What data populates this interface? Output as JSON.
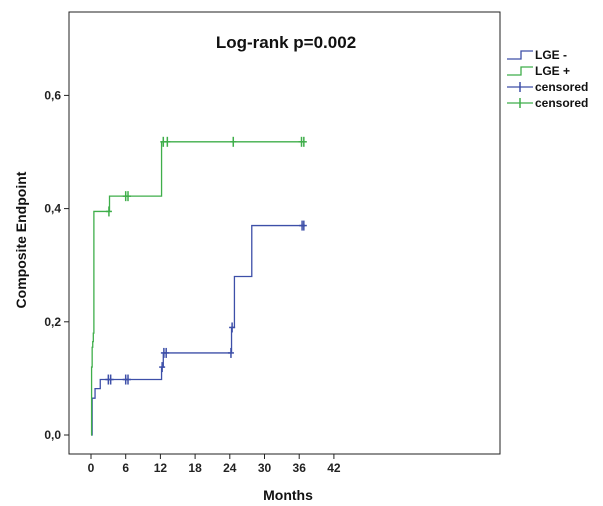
{
  "chart_data": {
    "type": "line",
    "title": "Log-rank p=0.002",
    "xlabel": "Months",
    "ylabel": "Composite Endpoint",
    "xlim": [
      -2,
      42
    ],
    "ylim": [
      -0.03,
      0.72
    ],
    "xticks": [
      0,
      6,
      12,
      18,
      24,
      30,
      36,
      42
    ],
    "xtick_labels": [
      "0",
      "6",
      "12",
      "18",
      "24",
      "30",
      "36",
      "42"
    ],
    "yticks": [
      0.0,
      0.2,
      0.4,
      0.6
    ],
    "ytick_labels": [
      "0,0",
      "0,2",
      "0,4",
      "0,6"
    ],
    "grid": false,
    "legend_position": "right",
    "legend": [
      "LGE -",
      "LGE +",
      "censored",
      "censored"
    ],
    "series": [
      {
        "name": "LGE -",
        "color": "#3d4fa8",
        "steps": [
          [
            0,
            0.0
          ],
          [
            0.2,
            0.065
          ],
          [
            0.7,
            0.082
          ],
          [
            1.6,
            0.098
          ],
          [
            12.2,
            0.12
          ],
          [
            12.5,
            0.145
          ],
          [
            24.3,
            0.19
          ],
          [
            24.8,
            0.28
          ],
          [
            27.8,
            0.37
          ],
          [
            37,
            0.37
          ]
        ],
        "censored": [
          [
            3,
            0.098
          ],
          [
            3.4,
            0.098
          ],
          [
            6,
            0.098
          ],
          [
            6.4,
            0.098
          ],
          [
            12.3,
            0.12
          ],
          [
            12.6,
            0.145
          ],
          [
            13,
            0.145
          ],
          [
            24.2,
            0.145
          ],
          [
            24.4,
            0.19
          ],
          [
            36.5,
            0.37
          ],
          [
            36.8,
            0.37
          ]
        ]
      },
      {
        "name": "LGE +",
        "color": "#3fae4a",
        "steps": [
          [
            0,
            0.0
          ],
          [
            0.1,
            0.12
          ],
          [
            0.2,
            0.155
          ],
          [
            0.3,
            0.165
          ],
          [
            0.4,
            0.18
          ],
          [
            0.5,
            0.395
          ],
          [
            3.2,
            0.422
          ],
          [
            12.2,
            0.518
          ],
          [
            37,
            0.518
          ]
        ],
        "censored": [
          [
            3.1,
            0.395
          ],
          [
            6,
            0.422
          ],
          [
            6.4,
            0.422
          ],
          [
            12.5,
            0.518
          ],
          [
            13.2,
            0.518
          ],
          [
            24.6,
            0.518
          ],
          [
            36.4,
            0.518
          ],
          [
            36.8,
            0.518
          ]
        ]
      }
    ]
  }
}
